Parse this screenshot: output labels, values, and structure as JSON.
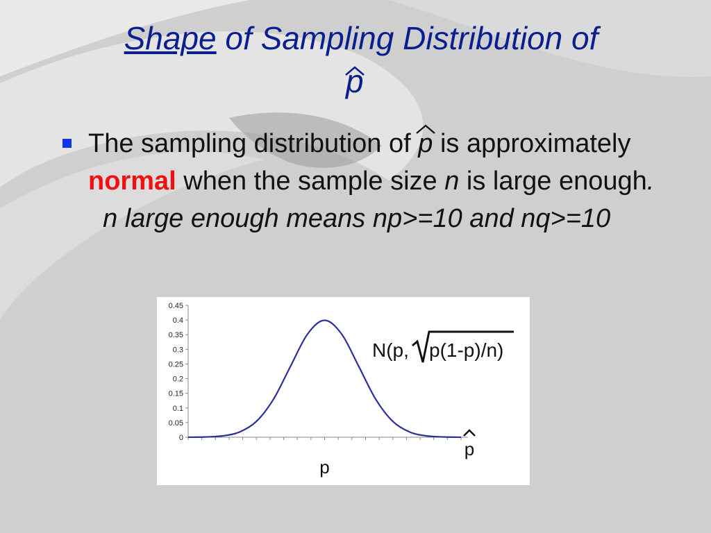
{
  "slide": {
    "title_underlined": "Shape",
    "title_rest": " of Sampling Distribution of",
    "title_symbol": "p",
    "colors": {
      "title": "#0a1f8f",
      "bullet": "#1034e6",
      "highlight": "#ee1111",
      "curve": "#2b2f9c"
    }
  },
  "bullet": {
    "part1": "The sampling distribution of ",
    "symbol": "p",
    "part2": " is approximately ",
    "highlight": "normal",
    "part3": " when the sample size ",
    "n": "n",
    "part4": " is large enough",
    "period": ".",
    "italic_tail": "  n large enough means np>=10 and nq>=10"
  },
  "chart_data": {
    "type": "line",
    "x": [
      -4,
      -3.5,
      -3,
      -2.5,
      -2,
      -1.5,
      -1,
      -0.5,
      0,
      0.5,
      1,
      1.5,
      2,
      2.5,
      3,
      3.5,
      4
    ],
    "values": [
      0.0001,
      0.0009,
      0.0044,
      0.0175,
      0.054,
      0.1295,
      0.242,
      0.352,
      0.399,
      0.352,
      0.242,
      0.1295,
      0.054,
      0.0175,
      0.0044,
      0.0009,
      0.0001
    ],
    "ylim": [
      0,
      0.45
    ],
    "y_ticks": [
      "0",
      "0.05",
      "0.1",
      "0.15",
      "0.2",
      "0.25",
      "0.3",
      "0.35",
      "0.4",
      "0.45"
    ],
    "xlabel": "p",
    "axis_end_label": "p",
    "annotation_prefix": "N(p,",
    "annotation_radicand": "p(1-p)/n)"
  }
}
